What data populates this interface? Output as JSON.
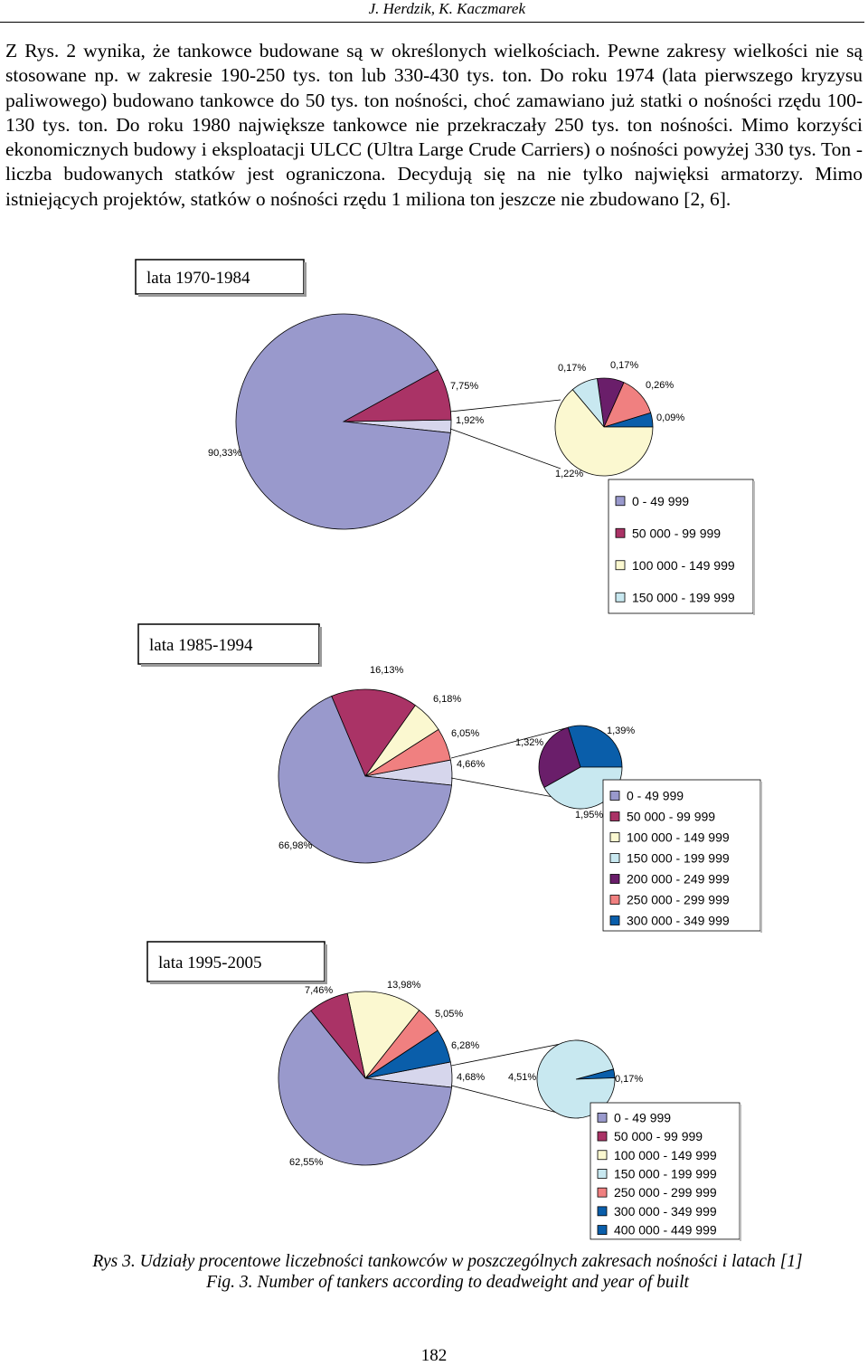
{
  "header": {
    "authors": "J. Herdzik, K. Kaczmarek"
  },
  "paragraph": "Z Rys. 2 wynika, że tankowce budowane są w określonych wielkościach. Pewne zakresy wielkości nie są stosowane np. w zakresie 190-250 tys. ton lub 330-430 tys. ton. Do roku 1974 (lata pierwszego kryzysu paliwowego) budowano tankowce do 50 tys. ton nośności, choć zamawiano już statki o nośności rzędu 100-130 tys. ton. Do roku 1980 największe tankowce nie przekraczały 250 tys. ton nośności. Mimo korzyści ekonomicznych budowy i eksploatacji ULCC (Ultra Large Crude Carriers) o nośności powyżej 330 tys. Ton - liczba budowanych statków jest ograniczona. Decydują się na nie tylko najwięksi armatorzy. Mimo istniejących projektów, statków o nośności rzędu 1 miliona ton jeszcze nie zbudowano [2, 6].",
  "colors": {
    "0 - 49 999": "#9999cc",
    "50 000 - 99 999": "#aa3366",
    "100 000 - 149 999": "#fbf8d0",
    "150 000 - 199 999": "#c8e8f0",
    "200 000 - 249 999": "#6a1e6a",
    "250 000 - 299 999": "#f08080",
    "300 000 - 349 999": "#0a5eaa",
    "400 000 - 449 999": "#0a5eaa"
  },
  "chart_data": [
    {
      "type": "pie",
      "title": "lata 1970-1984",
      "main": [
        {
          "name": "0 - 49 999",
          "label": "90,33%",
          "value": 90.33
        },
        {
          "name": "50 000 - 99 999",
          "label": "7,75%",
          "value": 7.75
        },
        {
          "name": "other",
          "label": "1,92%",
          "value": 1.92
        }
      ],
      "detail": [
        {
          "name": "100 000 - 149 999",
          "label": "1,22%",
          "value": 1.22
        },
        {
          "name": "150 000 - 199 999",
          "label": "0,17%",
          "value": 0.17
        },
        {
          "name": "200 000 - 249 999",
          "label": "0,17%",
          "value": 0.17
        },
        {
          "name": "250 000 - 299 999",
          "label": "0,26%",
          "value": 0.26
        },
        {
          "name": "300 000 - 349 999",
          "label": "0,09%",
          "value": 0.09
        }
      ],
      "legend": [
        "0 - 49 999",
        "50 000 - 99 999",
        "100 000 - 149 999",
        "150 000 - 199 999"
      ]
    },
    {
      "type": "pie",
      "title": "lata 1985-1994",
      "main": [
        {
          "name": "0 - 49 999",
          "label": "66,98%",
          "value": 66.98
        },
        {
          "name": "50 000 - 99 999",
          "label": "16,13%",
          "value": 16.13
        },
        {
          "name": "100 000 - 149 999",
          "label": "6,18%",
          "value": 6.18
        },
        {
          "name": "250 000 - 299 999",
          "label": "6,05%",
          "value": 6.05
        },
        {
          "name": "other",
          "label": "4,66%",
          "value": 4.66
        }
      ],
      "detail": [
        {
          "name": "150 000 - 199 999",
          "label": "1,95%",
          "value": 1.95
        },
        {
          "name": "200 000 - 249 999",
          "label": "1,32%",
          "value": 1.32
        },
        {
          "name": "300 000 - 349 999",
          "label": "1,39%",
          "value": 1.39
        }
      ],
      "legend": [
        "0 - 49 999",
        "50 000 - 99 999",
        "100 000 - 149 999",
        "150 000 - 199 999",
        "200 000 - 249 999",
        "250 000 - 299 999",
        "300 000 - 349 999"
      ]
    },
    {
      "type": "pie",
      "title": "lata 1995-2005",
      "main": [
        {
          "name": "0 - 49 999",
          "label": "62,55%",
          "value": 62.55
        },
        {
          "name": "50 000 - 99 999",
          "label": "7,46%",
          "value": 7.46
        },
        {
          "name": "100 000 - 149 999",
          "label": "13,98%",
          "value": 13.98
        },
        {
          "name": "250 000 - 299 999",
          "label": "5,05%",
          "value": 5.05
        },
        {
          "name": "300 000 - 349 999",
          "label": "6,28%",
          "value": 6.28
        },
        {
          "name": "other",
          "label": "4,68%",
          "value": 4.68
        }
      ],
      "detail": [
        {
          "name": "150 000 - 199 999",
          "label": "4,51%",
          "value": 4.51
        },
        {
          "name": "400 000 - 449 999",
          "label": "0,17%",
          "value": 0.17
        }
      ],
      "legend": [
        "0 - 49 999",
        "50 000 - 99 999",
        "100 000 - 149 999",
        "150 000 - 199 999",
        "250 000 - 299 999",
        "300 000 - 349 999",
        "400 000 - 449 999"
      ]
    }
  ],
  "caption": {
    "pl": "Rys 3. Udziały procentowe liczebności tankowców w poszczególnych zakresach nośności i latach [1]",
    "en": "Fig. 3. Number of tankers according to deadweight and year of built"
  },
  "page_number": "182"
}
